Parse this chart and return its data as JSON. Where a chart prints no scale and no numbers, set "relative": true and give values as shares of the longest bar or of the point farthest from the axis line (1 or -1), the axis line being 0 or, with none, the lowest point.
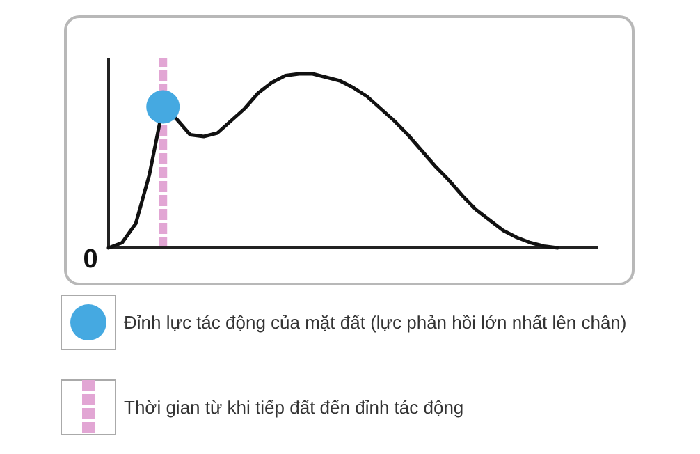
{
  "chart_data": {
    "type": "line",
    "relative": true,
    "grid": false,
    "categories": [
      null,
      null,
      null,
      null,
      null,
      null,
      null,
      null,
      null,
      null,
      null,
      null,
      null,
      null,
      null,
      null,
      null,
      null,
      null,
      null,
      null,
      null,
      null,
      null,
      null,
      null,
      null,
      null,
      null,
      null,
      null,
      null,
      null,
      null,
      null,
      null,
      null
    ],
    "series": [
      {
        "color": "#111111",
        "line_style": "solid",
        "values": [
          0,
          0.03,
          0.14,
          0.42,
          0.81,
          0.74,
          0.65,
          0.64,
          0.66,
          0.73,
          0.8,
          0.89,
          0.95,
          0.99,
          1,
          1,
          0.98,
          0.96,
          0.92,
          0.87,
          0.8,
          0.73,
          0.65,
          0.56,
          0.47,
          0.39,
          0.3,
          0.22,
          0.16,
          0.1,
          0.06,
          0.03,
          0.01,
          0,
          null,
          null,
          null
        ]
      }
    ],
    "ref_lines": [
      {
        "axis": "x",
        "label": "Thời gian từ khi tiếp đất đến đỉnh tác động",
        "color": "#e2a6d4",
        "line_style": "dashed"
      }
    ],
    "annotations": [
      "0",
      "Đỉnh lực tác động của mặt đất (lực phản hồi lớn nhất lên chân)"
    ]
  }
}
